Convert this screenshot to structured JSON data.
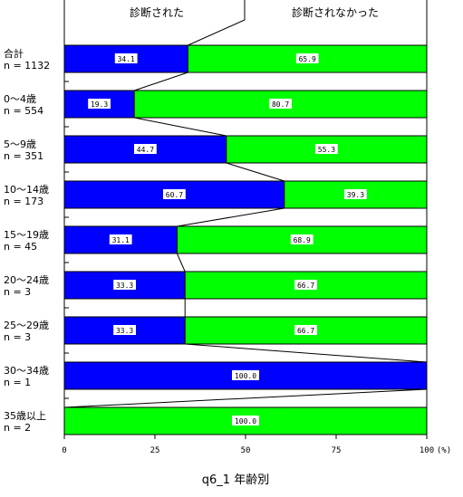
{
  "chart_data": {
    "type": "bar",
    "stacked": true,
    "orientation": "horizontal",
    "title": "q6_1 年齢別",
    "xlim": [
      0,
      100
    ],
    "x_ticks": [
      "0",
      "25",
      "50",
      "75",
      "100"
    ],
    "x_unit": "(%)",
    "categories": [
      {
        "name": "合計",
        "n": "n = 1132"
      },
      {
        "name": "0～4歳",
        "n": "n = 554"
      },
      {
        "name": "5～9歳",
        "n": "n = 351"
      },
      {
        "name": "10～14歳",
        "n": "n = 173"
      },
      {
        "name": "15～19歳",
        "n": "n = 45"
      },
      {
        "name": "20～24歳",
        "n": "n = 3"
      },
      {
        "name": "25～29歳",
        "n": "n = 3"
      },
      {
        "name": "30～34歳",
        "n": "n = 1"
      },
      {
        "name": "35歳以上",
        "n": "n = 2"
      }
    ],
    "series": [
      {
        "name": "診断された",
        "color": "#0000ff",
        "values": [
          34.1,
          19.3,
          44.7,
          60.7,
          31.1,
          33.3,
          33.3,
          100.0,
          0
        ]
      },
      {
        "name": "診断されなかった",
        "color": "#00ff00",
        "values": [
          65.9,
          80.7,
          55.3,
          39.3,
          68.9,
          66.7,
          66.7,
          0,
          100.0
        ]
      }
    ],
    "value_labels": [
      [
        "34.1",
        "65.9"
      ],
      [
        "19.3",
        "80.7"
      ],
      [
        "44.7",
        "55.3"
      ],
      [
        "60.7",
        "39.3"
      ],
      [
        "31.1",
        "68.9"
      ],
      [
        "33.3",
        "66.7"
      ],
      [
        "33.3",
        "66.7"
      ],
      [
        "100.0",
        ""
      ],
      [
        "",
        "100.0"
      ]
    ],
    "legend_placement": "top"
  }
}
